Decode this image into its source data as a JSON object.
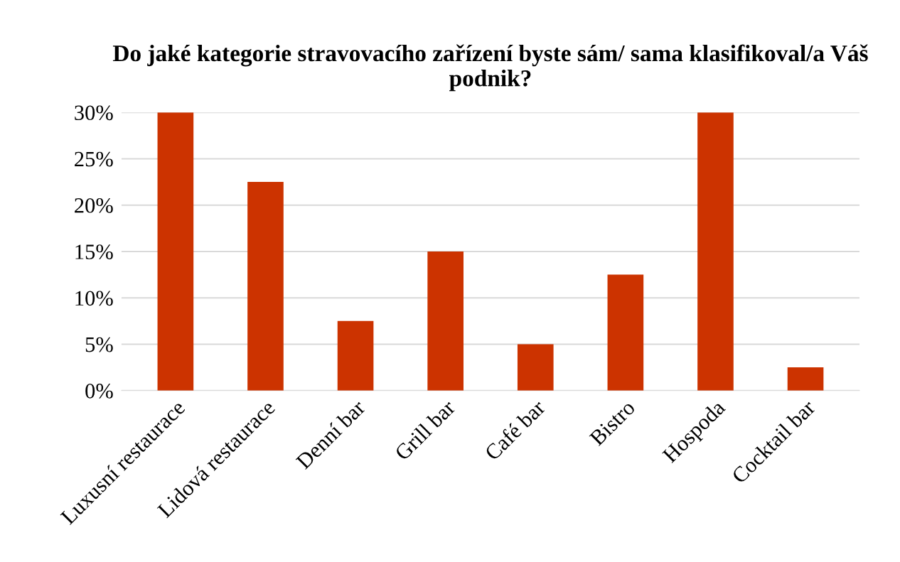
{
  "chart_data": {
    "type": "bar",
    "title": "Do jaké kategorie stravovacího zařízení byste sám/ sama klasifikoval/a Váš podnik?",
    "categories": [
      "Luxusní restaurace",
      "Lidová restaurace",
      "Denní bar",
      "Grill bar",
      "Café bar",
      "Bistro",
      "Hospoda",
      "Cocktail bar"
    ],
    "values": [
      30,
      22.5,
      7.5,
      15,
      5,
      12.5,
      30,
      2.5
    ],
    "color": "#cc3300",
    "ylim": [
      0,
      30
    ],
    "yticks": [
      {
        "value": 0,
        "label": "0%"
      },
      {
        "value": 5,
        "label": "5%"
      },
      {
        "value": 10,
        "label": "10%"
      },
      {
        "value": 15,
        "label": "15%"
      },
      {
        "value": 20,
        "label": "20%"
      },
      {
        "value": 25,
        "label": "25%"
      },
      {
        "value": 30,
        "label": "30%"
      }
    ],
    "grid": "y",
    "legend": false
  }
}
